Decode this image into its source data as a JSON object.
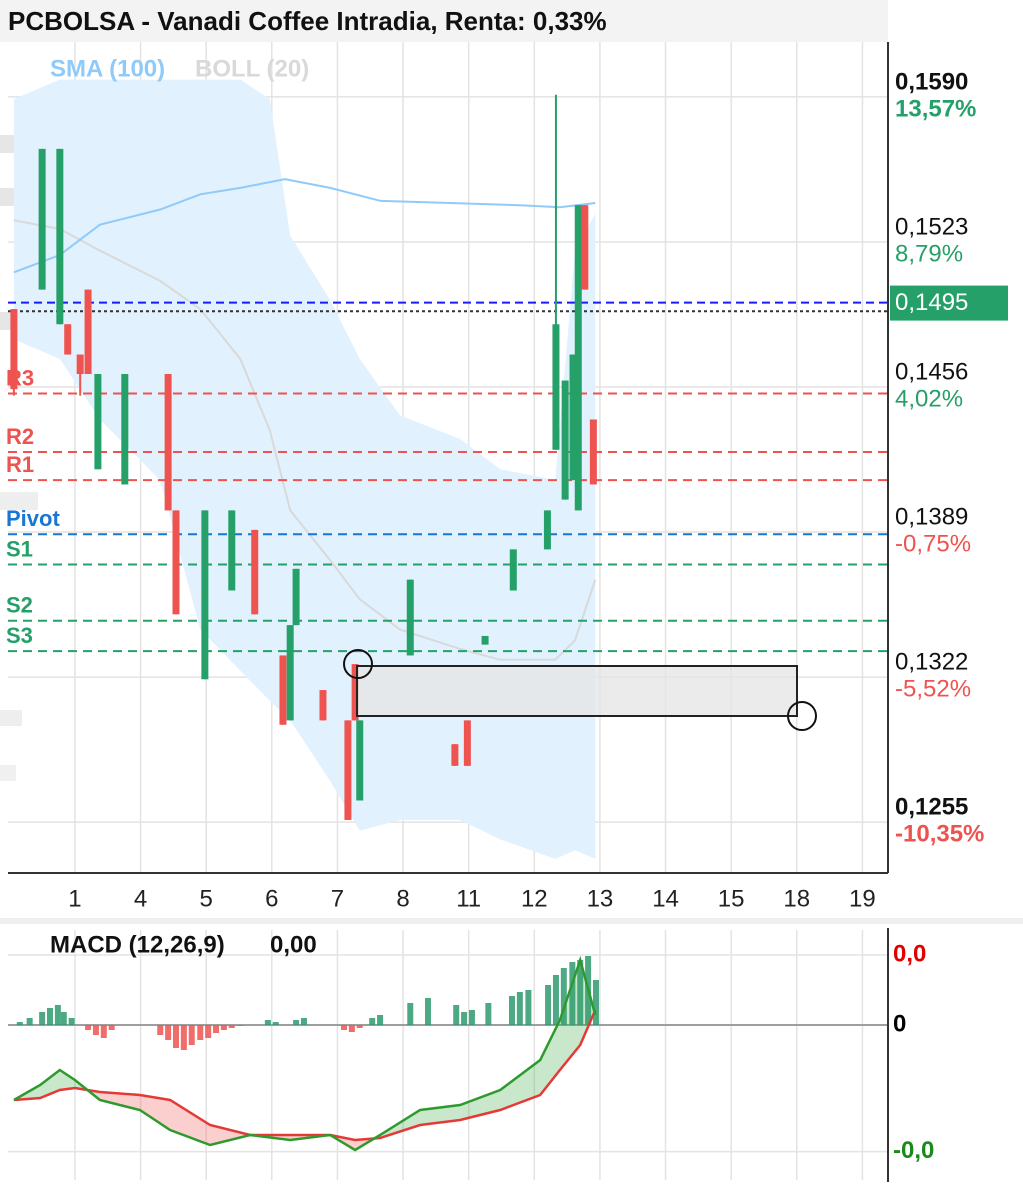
{
  "chart_data": [
    {
      "type": "candlestick",
      "title": "PCBOLSA - Vanadi Coffee Intradia, Renta: 0,33%",
      "xlim": [
        -1.02,
        12.39
      ],
      "xticks": [
        {
          "value": 0,
          "label": "1"
        },
        {
          "value": 1,
          "label": "4"
        },
        {
          "value": 2,
          "label": "5"
        },
        {
          "value": 3,
          "label": "6"
        },
        {
          "value": 4,
          "label": "7"
        },
        {
          "value": 5,
          "label": "8"
        },
        {
          "value": 6,
          "label": "11"
        },
        {
          "value": 7,
          "label": "12"
        },
        {
          "value": 8,
          "label": "13"
        },
        {
          "value": 9,
          "label": "14"
        },
        {
          "value": 10,
          "label": "15"
        },
        {
          "value": 11,
          "label": "18"
        },
        {
          "value": 12,
          "label": "19"
        }
      ],
      "ylim": [
        0.12315,
        0.16163
      ],
      "yticks": [
        {
          "value": 0.159,
          "label": "0,1590"
        },
        {
          "value": 0.1523,
          "label": "0,1523"
        },
        {
          "value": 0.1456,
          "label": "0,1456"
        },
        {
          "value": 0.1389,
          "label": "0,1389"
        },
        {
          "value": 0.1322,
          "label": "0,1322"
        },
        {
          "value": 0.1255,
          "label": "0,1255"
        }
      ],
      "ytick_changes": [
        {
          "value": 13.57,
          "label": "13,57%"
        },
        {
          "value": 8.79,
          "label": "8,79%"
        },
        {
          "value": 4.02,
          "label": "4,02%"
        },
        {
          "value": -0.75,
          "label": "-0,75%"
        },
        {
          "value": -5.52,
          "label": "-5,52%"
        },
        {
          "value": -10.35,
          "label": "-10,35%"
        }
      ],
      "grid": true,
      "up_color": "#26a069",
      "down_color": "#ef5350",
      "candles": {
        "x": [
          -0.93,
          -0.5,
          -0.23,
          -0.11,
          0.08,
          0.2,
          0.35,
          0.76,
          1.42,
          1.54,
          1.98,
          2.39,
          2.74,
          3.17,
          3.28,
          3.37,
          3.78,
          4.16,
          4.27,
          4.34,
          5.11,
          5.79,
          5.98,
          6.25,
          6.68,
          7.2,
          7.33,
          7.47,
          7.59,
          7.67,
          7.77,
          7.9
        ],
        "open": [
          0.1492,
          0.1501,
          0.1485,
          0.1485,
          0.1471,
          0.1501,
          0.1418,
          0.1411,
          0.1462,
          0.1399,
          0.1321,
          0.1362,
          0.139,
          0.1332,
          0.1302,
          0.1346,
          0.1316,
          0.1302,
          0.1328,
          0.1265,
          0.1332,
          0.1291,
          0.1302,
          0.1337,
          0.1362,
          0.1381,
          0.1427,
          0.1404,
          0.1413,
          0.1399,
          0.154,
          0.1441
        ],
        "high": [
          0.1492,
          0.1566,
          0.1566,
          0.1485,
          0.1471,
          0.1501,
          0.1462,
          0.1462,
          0.1462,
          0.1399,
          0.1399,
          0.1399,
          0.139,
          0.1332,
          0.1346,
          0.1372,
          0.1316,
          0.1302,
          0.1328,
          0.1302,
          0.1367,
          0.1291,
          0.1302,
          0.1341,
          0.1381,
          0.1399,
          0.1591,
          0.1459,
          0.1471,
          0.154,
          0.154,
          0.1441
        ],
        "low": [
          0.1452,
          0.1501,
          0.1485,
          0.1471,
          0.1452,
          0.1462,
          0.1418,
          0.1411,
          0.1399,
          0.1351,
          0.1321,
          0.1362,
          0.1351,
          0.13,
          0.1302,
          0.1346,
          0.1302,
          0.1256,
          0.1302,
          0.1265,
          0.1332,
          0.1281,
          0.1281,
          0.1337,
          0.1362,
          0.1381,
          0.1427,
          0.1404,
          0.1413,
          0.1399,
          0.1501,
          0.1411
        ],
        "close": [
          0.1455,
          0.1566,
          0.1566,
          0.1471,
          0.1462,
          0.1462,
          0.1462,
          0.1462,
          0.1399,
          0.1351,
          0.1399,
          0.1399,
          0.1351,
          0.13,
          0.1346,
          0.1372,
          0.1302,
          0.1256,
          0.1302,
          0.1302,
          0.1367,
          0.1281,
          0.1281,
          0.1341,
          0.1381,
          0.1399,
          0.1485,
          0.1459,
          0.1471,
          0.154,
          0.1501,
          0.1411
        ]
      },
      "sma": {
        "name": "SMA (100)",
        "color": "#90caf9",
        "x": [
          -0.93,
          -0.23,
          0.38,
          1.3,
          1.91,
          2.52,
          3.2,
          3.89,
          4.65,
          5.72,
          6.78,
          7.39,
          7.93
        ],
        "values": [
          0.1509,
          0.1517,
          0.1531,
          0.1538,
          0.1545,
          0.1548,
          0.1552,
          0.1548,
          0.1542,
          0.1541,
          0.154,
          0.1539,
          0.1541
        ]
      },
      "boll": {
        "name": "BOLL (20)",
        "color": "#d9d9d9",
        "fill": "#e1f1fd",
        "x": [
          -0.93,
          -0.23,
          0.38,
          1.3,
          1.91,
          2.52,
          2.97,
          3.28,
          3.89,
          4.34,
          4.95,
          5.87,
          6.48,
          7.32,
          7.62,
          7.93
        ],
        "upper": [
          0.1589,
          0.1598,
          0.1598,
          0.1598,
          0.1598,
          0.1598,
          0.1589,
          0.1526,
          0.1496,
          0.1469,
          0.1443,
          0.1432,
          0.1418,
          0.1413,
          0.1519,
          0.1536
        ],
        "middle": [
          0.1533,
          0.1529,
          0.1519,
          0.1505,
          0.1492,
          0.1469,
          0.1436,
          0.1399,
          0.1376,
          0.1358,
          0.1344,
          0.1335,
          0.133,
          0.133,
          0.1339,
          0.1367
        ],
        "lower": [
          0.1478,
          0.1469,
          0.1441,
          0.1413,
          0.1344,
          0.1325,
          0.1311,
          0.1302,
          0.1274,
          0.1251,
          0.1256,
          0.1256,
          0.1247,
          0.1238,
          0.1242,
          0.1238
        ]
      },
      "levels": [
        {
          "name": "R3",
          "value": 0.1453,
          "color": "#ef5350"
        },
        {
          "name": "R2",
          "value": 0.1426,
          "color": "#ef5350"
        },
        {
          "name": "R1",
          "value": 0.1413,
          "color": "#ef5350"
        },
        {
          "name": "Pivot",
          "value": 0.1388,
          "color": "#1976d2"
        },
        {
          "name": "S1",
          "value": 0.1374,
          "color": "#26a069"
        },
        {
          "name": "S2",
          "value": 0.1348,
          "color": "#26a069"
        },
        {
          "name": "S3",
          "value": 0.1334,
          "color": "#26a069"
        }
      ],
      "current_price": {
        "value": 0.1495,
        "label": "0,1495",
        "color": "#1a1aff",
        "box_color": "#26a069"
      },
      "close_line": 0.1491
    },
    {
      "type": "macd",
      "title": "MACD (12,26,9)",
      "values": [
        0
      ],
      "value_labels": [
        "0,00"
      ],
      "xlim": [
        -1.02,
        12.39
      ],
      "ylim": [
        -0.00093,
        0.00057
      ],
      "yticks": [
        {
          "value": 0.00042,
          "label": "0,0"
        },
        0,
        {
          "value": -0.00076,
          "label": "-0,0"
        }
      ],
      "ytick_colors": [
        "#e00000",
        "#000000",
        "#1a8a1a"
      ],
      "up_color": "#2e9a6e",
      "down_color": "#ef5350",
      "histogram": {
        "x": [
          -0.84,
          -0.69,
          -0.5,
          -0.38,
          -0.26,
          -0.17,
          -0.05,
          0.2,
          0.32,
          0.44,
          0.56,
          1.3,
          1.42,
          1.54,
          1.66,
          1.78,
          1.91,
          2.03,
          2.15,
          2.27,
          2.39,
          2.52,
          2.94,
          3.06,
          3.37,
          3.49,
          4.1,
          4.22,
          4.34,
          4.53,
          4.65,
          5.11,
          5.38,
          5.81,
          5.93,
          6.05,
          6.3,
          6.66,
          6.78,
          6.91,
          7.21,
          7.33,
          7.45,
          7.58,
          7.7,
          7.82,
          7.94
        ],
        "values": [
          1.8e-05,
          4.2e-05,
          7.8e-05,
          0.000102,
          0.00012,
          7.8e-05,
          4.2e-05,
          -3e-05,
          -6e-05,
          -7.8e-05,
          -3e-05,
          -6e-05,
          -9e-05,
          -0.000138,
          -0.00015,
          -0.00012,
          -9e-05,
          -7.8e-05,
          -4.8e-05,
          -3e-05,
          -1.8e-05,
          -6e-06,
          3e-05,
          1.8e-05,
          3e-05,
          4.2e-05,
          -3e-05,
          -4.2e-05,
          -1.8e-05,
          4.2e-05,
          6e-05,
          0.000132,
          0.000162,
          0.00012,
          7.8e-05,
          9e-05,
          0.000132,
          0.000174,
          0.000198,
          0.00021,
          0.00024,
          0.0003,
          0.000342,
          0.000378,
          0.00039,
          0.000414,
          0.00027
        ]
      },
      "line_x": [
        -0.93,
        -0.53,
        -0.23,
        0,
        0.38,
        0.99,
        1.45,
        2.06,
        2.67,
        3.28,
        3.89,
        4.27,
        4.65,
        5.26,
        5.87,
        6.48,
        7.09,
        7.39,
        7.7,
        7.93
      ],
      "macd": {
        "color": "#2e9a2e",
        "values": [
          -0.00045,
          -0.00036,
          -0.00027,
          -0.00033,
          -0.00045,
          -0.00051,
          -0.00063,
          -0.00072,
          -0.00066,
          -0.00069,
          -0.00066,
          -0.00075,
          -0.00066,
          -0.00051,
          -0.00048,
          -0.00039,
          -0.00021,
          3e-05,
          0.00039,
          6e-05
        ]
      },
      "signal": {
        "color": "#e53935",
        "values": [
          -0.00045,
          -0.000438,
          -0.00039,
          -0.000378,
          -0.000402,
          -0.00042,
          -0.00045,
          -0.0006,
          -0.00066,
          -0.00066,
          -0.00066,
          -0.00069,
          -0.000678,
          -0.0006,
          -0.00057,
          -0.00051,
          -0.00042,
          -0.00027,
          -0.00012,
          9e-05
        ]
      },
      "zero_line": true
    }
  ]
}
